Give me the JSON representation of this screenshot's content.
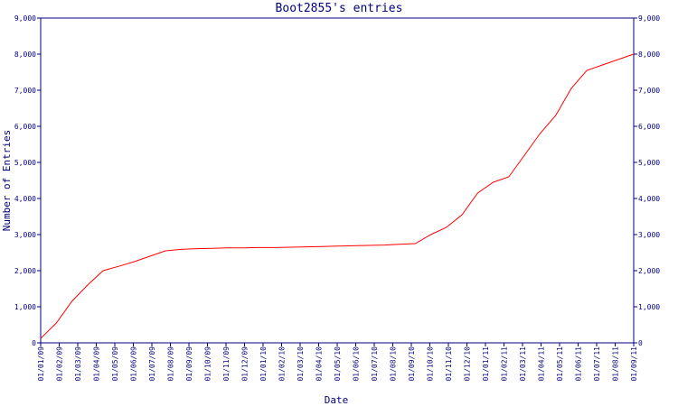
{
  "chart_data": {
    "type": "line",
    "title": "Boot2855's entries",
    "xlabel": "Date",
    "ylabel": "Number of Entries",
    "ylim": [
      0,
      9000
    ],
    "yticks": [
      "0",
      "1,000",
      "2,000",
      "3,000",
      "4,000",
      "5,000",
      "6,000",
      "7,000",
      "8,000",
      "9,000"
    ],
    "categories": [
      "01/01/09",
      "01/02/09",
      "01/03/09",
      "01/04/09",
      "01/05/09",
      "01/06/09",
      "01/07/09",
      "01/08/09",
      "01/09/09",
      "01/10/09",
      "01/11/09",
      "01/12/09",
      "01/01/10",
      "01/02/10",
      "01/03/10",
      "01/04/10",
      "01/05/10",
      "01/06/10",
      "01/07/10",
      "01/08/10",
      "01/09/10",
      "01/10/10",
      "01/11/10",
      "01/12/10",
      "01/01/11",
      "01/02/11",
      "01/03/11",
      "01/04/11",
      "01/05/11",
      "01/06/11",
      "01/07/11",
      "01/08/11",
      "01/09/11"
    ],
    "grid": false,
    "color": "#ff0000",
    "axis_color": "#000080",
    "series": [
      {
        "values": [
          [
            0,
            120
          ],
          [
            0.5,
            550
          ],
          [
            1,
            1150
          ],
          [
            1.5,
            1600
          ],
          [
            2,
            2000
          ],
          [
            2.5,
            2120
          ],
          [
            3,
            2250
          ],
          [
            3.5,
            2400
          ],
          [
            4,
            2550
          ],
          [
            4.5,
            2590
          ],
          [
            5,
            2610
          ],
          [
            5.5,
            2620
          ],
          [
            6,
            2630
          ],
          [
            6.5,
            2630
          ],
          [
            7,
            2640
          ],
          [
            7.5,
            2640
          ],
          [
            8,
            2650
          ],
          [
            8.5,
            2660
          ],
          [
            9,
            2670
          ],
          [
            9.5,
            2680
          ],
          [
            10,
            2690
          ],
          [
            10.5,
            2700
          ],
          [
            11,
            2710
          ],
          [
            11.5,
            2730
          ],
          [
            12,
            2750
          ],
          [
            12.5,
            3000
          ],
          [
            13,
            3200
          ],
          [
            13.5,
            3550
          ],
          [
            14,
            4150
          ],
          [
            14.5,
            4450
          ],
          [
            15,
            4600
          ],
          [
            15.5,
            5200
          ],
          [
            16,
            5800
          ],
          [
            16.5,
            6300
          ],
          [
            17,
            7050
          ],
          [
            17.5,
            7550
          ],
          [
            18,
            7700
          ],
          [
            18.5,
            7850
          ],
          [
            19,
            8000
          ]
        ],
        "x_mode": "index-offset-from-first-category-at-32"
      }
    ]
  }
}
